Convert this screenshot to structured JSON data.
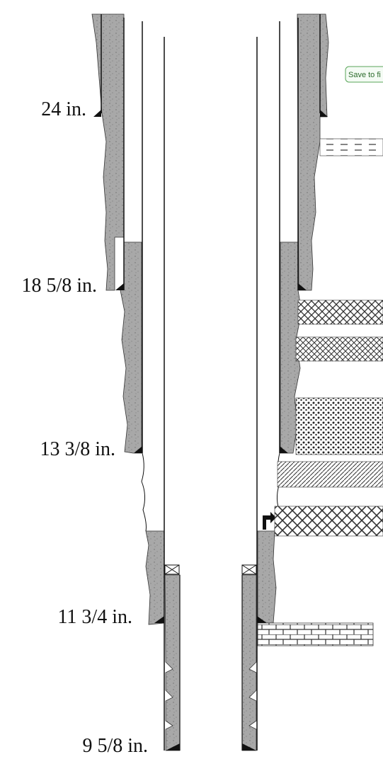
{
  "casing_labels": [
    "24 in.",
    "18 5/8 in.",
    "13 3/8 in.",
    "11 3/4 in.",
    "9 5/8 in."
  ],
  "save_button": {
    "label": "Save to fi"
  },
  "colors": {
    "cement": "#a8a8a8",
    "cement_speckle": "#6e6e6e",
    "casing_line": "#111111",
    "formation_pattern": "#333333",
    "save_border": "#5aa65a"
  }
}
